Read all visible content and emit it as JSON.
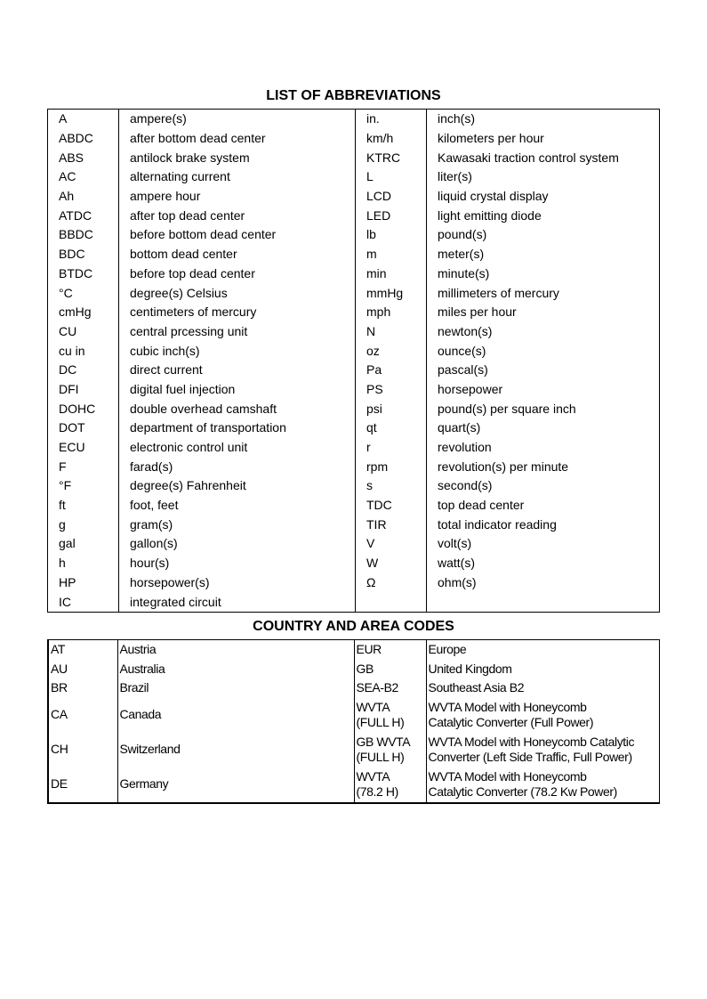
{
  "abbreviations": {
    "title": "LIST OF ABBREVIATIONS",
    "rows": [
      [
        "A",
        "ampere(s)",
        "in.",
        "inch(s)"
      ],
      [
        "ABDC",
        "after bottom dead center",
        "km/h",
        "kilometers per hour"
      ],
      [
        "ABS",
        "antilock brake system",
        "KTRC",
        "Kawasaki traction control system"
      ],
      [
        "AC",
        "alternating current",
        "L",
        "liter(s)"
      ],
      [
        "Ah",
        "ampere hour",
        "LCD",
        "liquid crystal display"
      ],
      [
        "ATDC",
        "after top dead center",
        "LED",
        "light emitting diode"
      ],
      [
        "BBDC",
        "before bottom dead center",
        "lb",
        "pound(s)"
      ],
      [
        "BDC",
        "bottom dead center",
        "m",
        "meter(s)"
      ],
      [
        "BTDC",
        "before top dead center",
        "min",
        "minute(s)"
      ],
      [
        "°C",
        "degree(s) Celsius",
        "mmHg",
        "millimeters of mercury"
      ],
      [
        "cmHg",
        "centimeters of mercury",
        "mph",
        "miles per hour"
      ],
      [
        "CU",
        "central prcessing unit",
        "N",
        "newton(s)"
      ],
      [
        "cu in",
        "cubic inch(s)",
        "oz",
        "ounce(s)"
      ],
      [
        "DC",
        "direct current",
        "Pa",
        "pascal(s)"
      ],
      [
        "DFI",
        "digital fuel injection",
        "PS",
        "horsepower"
      ],
      [
        "DOHC",
        "double overhead camshaft",
        "psi",
        "pound(s) per square inch"
      ],
      [
        "DOT",
        "department of transportation",
        "qt",
        "quart(s)"
      ],
      [
        "ECU",
        "electronic control unit",
        "r",
        "revolution"
      ],
      [
        "F",
        "farad(s)",
        "rpm",
        "revolution(s) per minute"
      ],
      [
        "°F",
        "degree(s) Fahrenheit",
        "s",
        "second(s)"
      ],
      [
        "ft",
        "foot, feet",
        "TDC",
        "top dead center"
      ],
      [
        "g",
        "gram(s)",
        "TIR",
        "total indicator reading"
      ],
      [
        "gal",
        "gallon(s)",
        "V",
        "volt(s)"
      ],
      [
        "h",
        "hour(s)",
        "W",
        "watt(s)"
      ],
      [
        "HP",
        "horsepower(s)",
        "Ω",
        "ohm(s)"
      ],
      [
        "IC",
        "integrated circuit",
        "",
        ""
      ]
    ]
  },
  "country_codes": {
    "title": "COUNTRY AND AREA CODES",
    "rows": [
      {
        "code": "AT",
        "name": "Austria",
        "code2": [
          "EUR"
        ],
        "name2": [
          "Europe"
        ]
      },
      {
        "code": "AU",
        "name": "Australia",
        "code2": [
          "GB"
        ],
        "name2": [
          "United Kingdom"
        ]
      },
      {
        "code": "BR",
        "name": "Brazil",
        "code2": [
          "SEA-B2"
        ],
        "name2": [
          "Southeast Asia B2"
        ]
      },
      {
        "code": "CA",
        "name": "Canada",
        "code2": [
          "WVTA",
          "(FULL H)"
        ],
        "name2": [
          "WVTA Model with Honeycomb",
          "Catalytic Converter (Full Power)"
        ]
      },
      {
        "code": "CH",
        "name": "Switzerland",
        "code2": [
          "GB WVTA",
          "(FULL H)"
        ],
        "name2": [
          "WVTA Model with Honeycomb Catalytic",
          "Converter (Left Side Traffic, Full Power)"
        ]
      },
      {
        "code": "DE",
        "name": "Germany",
        "code2": [
          "WVTA",
          "(78.2 H)"
        ],
        "name2": [
          "WVTA Model with Honeycomb",
          "Catalytic Converter (78.2 Kw Power)"
        ]
      }
    ]
  }
}
